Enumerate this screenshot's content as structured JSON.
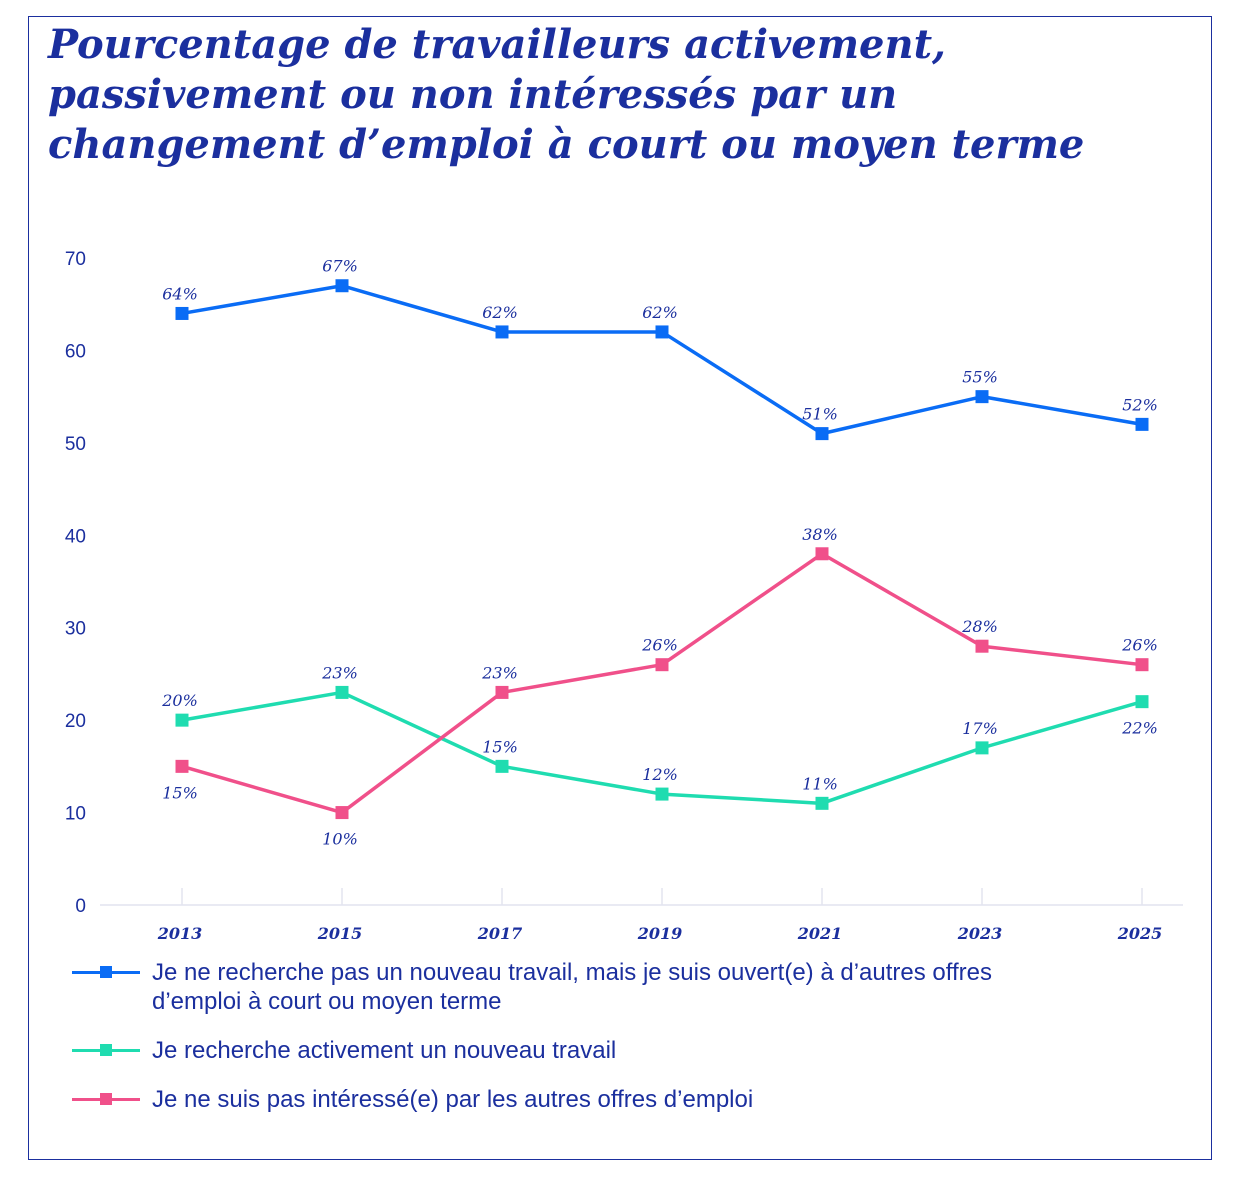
{
  "chart_data": {
    "type": "line",
    "title": "Pourcentage de travailleurs activement, passivement ou non intéressés par un changement d’emploi à court ou moyen terme",
    "x": [
      "2013",
      "2015",
      "2017",
      "2019",
      "2021",
      "2023",
      "2025"
    ],
    "ylim": [
      0,
      70
    ],
    "yticks": [
      0,
      10,
      20,
      30,
      40,
      50,
      60,
      70
    ],
    "grid": false,
    "legend_position": "bottom",
    "series": [
      {
        "name": "Je ne recherche pas un nouveau travail, mais je suis ouvert(e) à d’autres offres d’emploi à court ou moyen terme",
        "color": "#0a6cf5",
        "values": [
          64,
          67,
          62,
          62,
          51,
          55,
          52
        ],
        "labels": [
          "64%",
          "67%",
          "62%",
          "62%",
          "51%",
          "55%",
          "52%"
        ]
      },
      {
        "name": "Je recherche activement un nouveau travail",
        "color": "#1fdcb0",
        "values": [
          20,
          23,
          15,
          12,
          11,
          17,
          22
        ],
        "labels": [
          "20%",
          "23%",
          "15%",
          "12%",
          "11%",
          "17%",
          "22%"
        ]
      },
      {
        "name": "Je ne suis pas intéressé(e) par les autres offres d’emploi",
        "color": "#f0508a",
        "values": [
          15,
          10,
          23,
          26,
          38,
          28,
          26
        ],
        "labels": [
          "15%",
          "10%",
          "23%",
          "26%",
          "38%",
          "28%",
          "26%"
        ]
      }
    ]
  }
}
